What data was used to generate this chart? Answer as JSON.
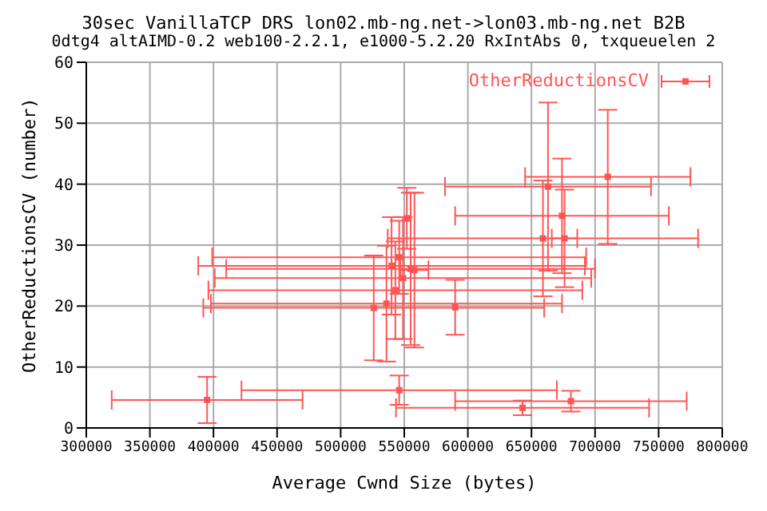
{
  "chart_data": {
    "type": "scatter",
    "title": "30sec VanillaTCP DRS lon02.mb-ng.net->lon03.mb-ng.net B2B",
    "subtitle": "0dtg4 altAIMD-0.2 web100-2.2.1, e1000-5.2.20 RxIntAbs 0, txqueuelen 2",
    "xlabel": "Average Cwnd Size (bytes)",
    "ylabel": "OtherReductionsCV (number)",
    "series": [
      {
        "name": "OtherReductionsCV",
        "color": "#ff5555",
        "x": [
          710000,
          663000,
          659000,
          674000,
          676000,
          552000,
          558000,
          546000,
          540000,
          555000,
          549000,
          543000,
          526000,
          536000,
          590000,
          395000,
          546000,
          643000,
          681000
        ],
        "values": [
          41.2,
          39.6,
          31.1,
          34.8,
          31.1,
          34.4,
          25.9,
          28.0,
          26.6,
          26.1,
          24.6,
          22.6,
          19.7,
          20.4,
          19.8,
          4.6,
          6.2,
          3.3,
          4.4
        ],
        "errors": [
          11,
          13.8,
          9.5,
          9.4,
          8,
          5,
          12.7,
          6,
          8,
          12.5,
          10,
          8,
          8.6,
          9.5,
          4.5,
          3.8,
          2.4,
          1.2,
          1.7
        ],
        "xerrors": [
          65000,
          81000,
          122000,
          84000,
          10000,
          null,
          11000,
          147000,
          152000,
          145000,
          148000,
          147000,
          134000,
          138000,
          null,
          75000,
          124000,
          99500,
          91000
        ]
      }
    ],
    "xlim": [
      300000,
      800000
    ],
    "xticks": [
      300000,
      350000,
      400000,
      450000,
      500000,
      550000,
      600000,
      650000,
      700000,
      750000,
      800000
    ],
    "ylim": [
      0,
      60
    ],
    "yticks": [
      0,
      10,
      20,
      30,
      40,
      50,
      60
    ],
    "grid": true,
    "legend": "top right",
    "marker": "square"
  }
}
